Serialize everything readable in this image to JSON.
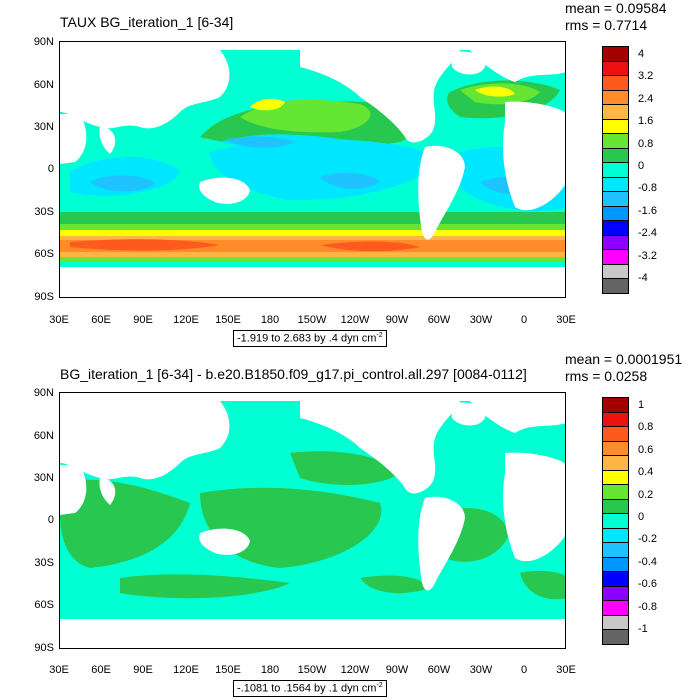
{
  "panels": [
    {
      "title": "TAUX BG_iteration_1 [6-34]",
      "mean": "mean = 0.09584",
      "rms": "rms = 0.7714",
      "range_label": "-1.919 to 2.683 by .4 dyn cm",
      "range_exp": "-2",
      "colorbar_labels": [
        "4",
        "3.2",
        "2.4",
        "1.6",
        "0.8",
        "0",
        "-0.8",
        "-1.6",
        "-2.4",
        "-3.2",
        "-4"
      ]
    },
    {
      "title": "BG_iteration_1 [6-34] - b.e20.B1850.f09_g17.pi_control.all.297 [0084-0112]",
      "mean": "mean = 0.0001951",
      "rms": "rms = 0.0258",
      "range_label": "-.1081 to .1564 by .1 dyn cm",
      "range_exp": "-2",
      "colorbar_labels": [
        "1",
        "0.8",
        "0.6",
        "0.4",
        "0.2",
        "0",
        "-0.2",
        "-0.4",
        "-0.6",
        "-0.8",
        "-1"
      ]
    }
  ],
  "lat_labels": [
    "90N",
    "60N",
    "30N",
    "0",
    "30S",
    "60S",
    "90S"
  ],
  "lon_labels": [
    "30E",
    "60E",
    "90E",
    "120E",
    "150E",
    "180",
    "150W",
    "120W",
    "90W",
    "60W",
    "30W",
    "0",
    "30E"
  ],
  "colors": {
    "palette": [
      "#a50000",
      "#ee1111",
      "#ff5a1e",
      "#ff8c28",
      "#ffb446",
      "#ffff00",
      "#64e632",
      "#28c850",
      "#00ffd2",
      "#00e6ff",
      "#1ec3ff",
      "#0096ff",
      "#0000ff",
      "#8c00ff",
      "#ff00ff",
      "#c8c8c8",
      "#646464"
    ],
    "land": "#ffffff",
    "axis": "#000000"
  }
}
